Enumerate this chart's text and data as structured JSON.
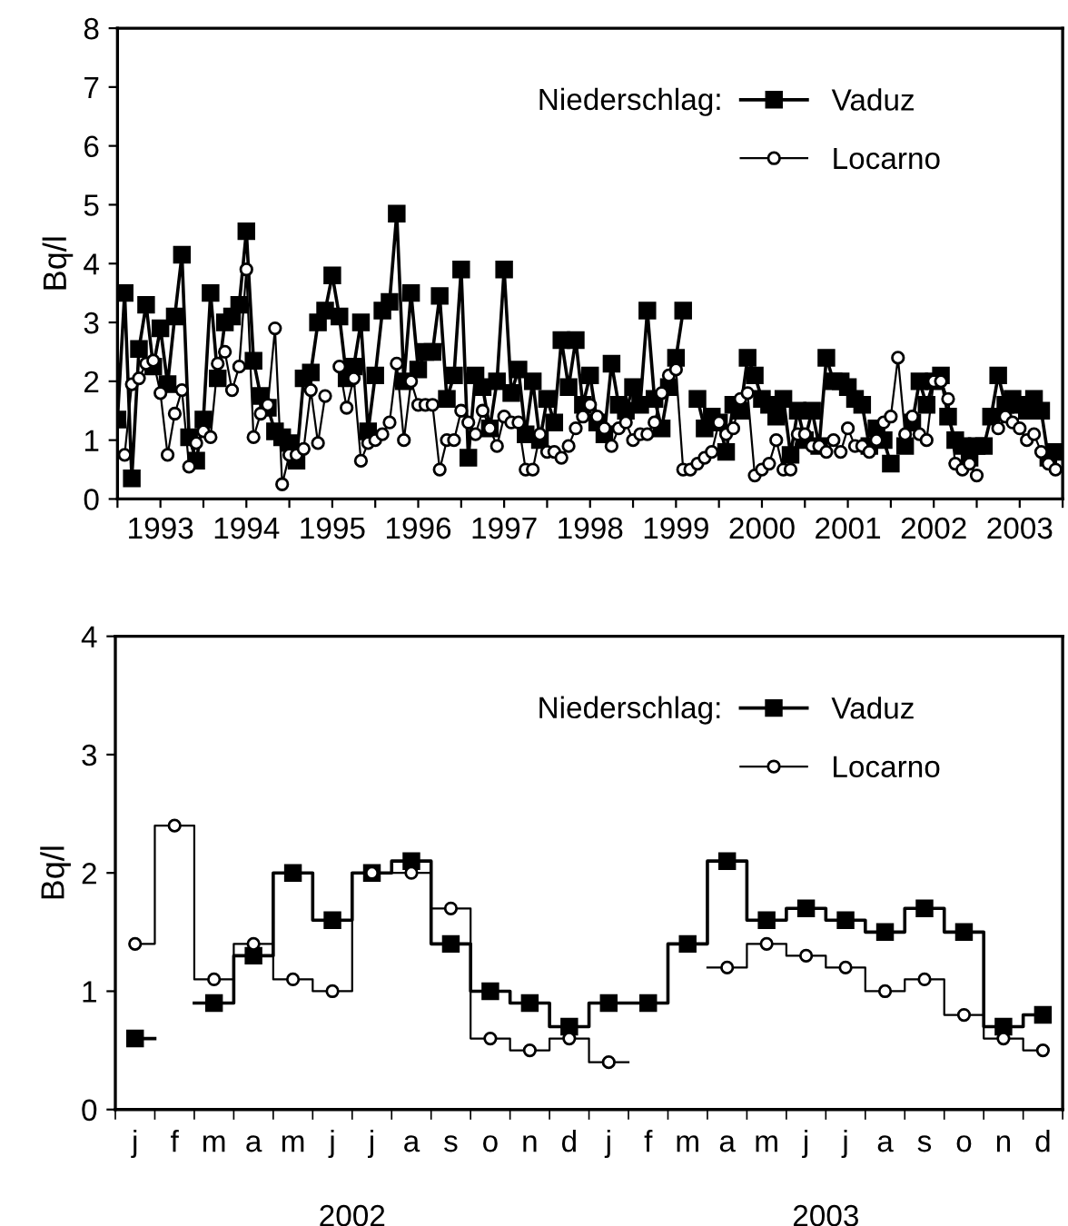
{
  "chart_data": [
    {
      "type": "line",
      "ylabel": "Bq/l",
      "legend_title": "Niederschlag:",
      "legend": "top right",
      "x": [
        "1993-01",
        "1993-02",
        "1993-03",
        "1993-04",
        "1993-05",
        "1993-06",
        "1993-07",
        "1993-08",
        "1993-09",
        "1993-10",
        "1993-11",
        "1993-12",
        "1994-01",
        "1994-02",
        "1994-03",
        "1994-04",
        "1994-05",
        "1994-06",
        "1994-07",
        "1994-08",
        "1994-09",
        "1994-10",
        "1994-11",
        "1994-12",
        "1995-01",
        "1995-02",
        "1995-03",
        "1995-04",
        "1995-05",
        "1995-06",
        "1995-07",
        "1995-08",
        "1995-09",
        "1995-10",
        "1995-11",
        "1995-12",
        "1996-01",
        "1996-02",
        "1996-03",
        "1996-04",
        "1996-05",
        "1996-06",
        "1996-07",
        "1996-08",
        "1996-09",
        "1996-10",
        "1996-11",
        "1996-12",
        "1997-01",
        "1997-02",
        "1997-03",
        "1997-04",
        "1997-05",
        "1997-06",
        "1997-07",
        "1997-08",
        "1997-09",
        "1997-10",
        "1997-11",
        "1997-12",
        "1998-01",
        "1998-02",
        "1998-03",
        "1998-04",
        "1998-05",
        "1998-06",
        "1998-07",
        "1998-08",
        "1998-09",
        "1998-10",
        "1998-11",
        "1998-12",
        "1999-01",
        "1999-02",
        "1999-03",
        "1999-04",
        "1999-05",
        "1999-06",
        "1999-07",
        "1999-08",
        "1999-09",
        "1999-10",
        "1999-11",
        "1999-12",
        "2000-01",
        "2000-02",
        "2000-03",
        "2000-04",
        "2000-05",
        "2000-06",
        "2000-07",
        "2000-08",
        "2000-09",
        "2000-10",
        "2000-11",
        "2000-12",
        "2001-01",
        "2001-02",
        "2001-03",
        "2001-04",
        "2001-05",
        "2001-06",
        "2001-07",
        "2001-08",
        "2001-09",
        "2001-10",
        "2001-11",
        "2001-12",
        "2002-01",
        "2002-02",
        "2002-03",
        "2002-04",
        "2002-05",
        "2002-06",
        "2002-07",
        "2002-08",
        "2002-09",
        "2002-10",
        "2002-11",
        "2002-12",
        "2003-01",
        "2003-02",
        "2003-03",
        "2003-04",
        "2003-05",
        "2003-06",
        "2003-07",
        "2003-08",
        "2003-09",
        "2003-10",
        "2003-11",
        "2003-12"
      ],
      "xlim": [
        "1993-01",
        "2004-01"
      ],
      "xticks": [
        {
          "value": "1993-01",
          "label": null
        },
        {
          "value": "1993-07",
          "label": "1993"
        },
        {
          "value": "1994-01",
          "label": null
        },
        {
          "value": "1994-07",
          "label": "1994"
        },
        {
          "value": "1995-01",
          "label": null
        },
        {
          "value": "1995-07",
          "label": "1995"
        },
        {
          "value": "1996-01",
          "label": null
        },
        {
          "value": "1996-07",
          "label": "1996"
        },
        {
          "value": "1997-01",
          "label": null
        },
        {
          "value": "1997-07",
          "label": "1997"
        },
        {
          "value": "1998-01",
          "label": null
        },
        {
          "value": "1998-07",
          "label": "1998"
        },
        {
          "value": "1999-01",
          "label": null
        },
        {
          "value": "1999-07",
          "label": "1999"
        },
        {
          "value": "2000-01",
          "label": null
        },
        {
          "value": "2000-07",
          "label": "2000"
        },
        {
          "value": "2001-01",
          "label": null
        },
        {
          "value": "2001-07",
          "label": "2001"
        },
        {
          "value": "2002-01",
          "label": null
        },
        {
          "value": "2002-07",
          "label": "2002"
        },
        {
          "value": "2003-01",
          "label": null
        },
        {
          "value": "2003-07",
          "label": "2003"
        },
        {
          "value": "2004-01",
          "label": null
        }
      ],
      "ylim": [
        0,
        8
      ],
      "yticks": [
        0,
        1,
        2,
        3,
        4,
        5,
        6,
        7,
        8
      ],
      "series": [
        {
          "name": "Vaduz",
          "color": "#000000",
          "marker": "square",
          "values": [
            1.35,
            3.5,
            0.35,
            2.55,
            3.3,
            2.25,
            2.9,
            1.95,
            3.1,
            4.15,
            1.05,
            0.65,
            1.35,
            3.5,
            2.05,
            3.0,
            3.1,
            3.3,
            4.55,
            2.35,
            1.75,
            1.55,
            1.15,
            1.05,
            0.95,
            0.65,
            2.05,
            2.15,
            3.0,
            3.2,
            3.8,
            3.1,
            2.05,
            2.25,
            3.0,
            1.15,
            2.1,
            3.2,
            3.35,
            4.85,
            2.0,
            3.5,
            2.2,
            2.5,
            2.5,
            3.45,
            1.7,
            2.1,
            3.9,
            0.7,
            2.1,
            1.9,
            1.2,
            2.0,
            3.9,
            1.8,
            2.2,
            1.1,
            2.0,
            1.0,
            1.7,
            1.3,
            2.7,
            1.9,
            2.7,
            1.6,
            2.1,
            1.3,
            1.1,
            2.3,
            1.6,
            1.5,
            1.9,
            1.6,
            3.2,
            1.7,
            1.2,
            1.9,
            2.4,
            3.2,
            null,
            1.7,
            1.2,
            1.4,
            1.3,
            0.8,
            1.6,
            1.5,
            2.4,
            2.1,
            1.7,
            1.6,
            1.4,
            1.7,
            0.75,
            1.5,
            1.0,
            1.5,
            0.9,
            2.4,
            2.0,
            2.0,
            1.9,
            1.7,
            1.6,
            0.9,
            1.2,
            1.0,
            0.6,
            null,
            0.9,
            1.3,
            2.0,
            1.6,
            2.0,
            2.1,
            1.4,
            1.0,
            0.9,
            0.7,
            0.9,
            0.9,
            1.4,
            2.1,
            1.6,
            1.7,
            1.6,
            1.5,
            1.7,
            1.5,
            0.7,
            0.8
          ]
        },
        {
          "name": "Locarno",
          "color": "#000000",
          "marker": "circle",
          "values": [
            null,
            0.75,
            1.95,
            2.05,
            2.3,
            2.35,
            1.8,
            0.75,
            1.45,
            1.85,
            0.55,
            0.95,
            1.15,
            1.05,
            2.3,
            2.5,
            1.85,
            2.25,
            3.9,
            1.05,
            1.45,
            1.6,
            2.9,
            0.25,
            0.75,
            0.75,
            0.85,
            1.85,
            0.95,
            1.75,
            null,
            2.25,
            1.55,
            2.05,
            0.65,
            0.95,
            1.0,
            1.1,
            1.3,
            2.3,
            1.0,
            2.0,
            1.6,
            1.6,
            1.6,
            0.5,
            1.0,
            1.0,
            1.5,
            1.3,
            1.1,
            1.5,
            1.2,
            0.9,
            1.4,
            1.3,
            1.3,
            0.5,
            0.5,
            1.1,
            0.8,
            0.8,
            0.7,
            0.9,
            1.2,
            1.4,
            1.6,
            1.4,
            1.2,
            0.9,
            1.2,
            1.3,
            1.0,
            1.1,
            1.1,
            1.3,
            1.8,
            2.1,
            2.2,
            0.5,
            0.5,
            0.6,
            0.7,
            0.8,
            1.3,
            1.1,
            1.2,
            1.7,
            1.8,
            0.4,
            0.5,
            0.6,
            1.0,
            0.5,
            0.5,
            1.1,
            1.1,
            0.9,
            0.9,
            0.8,
            1.0,
            0.8,
            1.2,
            0.9,
            0.9,
            0.8,
            1.0,
            1.3,
            1.4,
            2.4,
            1.1,
            1.4,
            1.1,
            1.0,
            2.0,
            2.0,
            1.7,
            0.6,
            0.5,
            0.6,
            0.4,
            null,
            null,
            1.2,
            1.4,
            1.3,
            1.2,
            1.0,
            1.1,
            0.8,
            0.6,
            0.5
          ]
        }
      ]
    },
    {
      "type": "step",
      "ylabel": "Bq/l",
      "legend_title": "Niederschlag:",
      "legend": "top right",
      "categories": [
        "j",
        "f",
        "m",
        "a",
        "m",
        "j",
        "j",
        "a",
        "s",
        "o",
        "n",
        "d",
        "j",
        "f",
        "m",
        "a",
        "m",
        "j",
        "j",
        "a",
        "s",
        "o",
        "n",
        "d"
      ],
      "ylim": [
        0,
        4
      ],
      "yticks": [
        0,
        1,
        2,
        3,
        4
      ],
      "annotations": [
        "2002",
        "2003"
      ],
      "series": [
        {
          "name": "Vaduz",
          "color": "#000000",
          "marker": "square",
          "values": [
            0.6,
            null,
            0.9,
            1.3,
            2.0,
            1.6,
            2.0,
            2.1,
            1.4,
            1.0,
            0.9,
            0.7,
            0.9,
            0.9,
            1.4,
            2.1,
            1.6,
            1.7,
            1.6,
            1.5,
            1.7,
            1.5,
            0.7,
            0.8
          ]
        },
        {
          "name": "Locarno",
          "color": "#000000",
          "marker": "circle",
          "values": [
            1.4,
            2.4,
            1.1,
            1.4,
            1.1,
            1.0,
            2.0,
            2.0,
            1.7,
            0.6,
            0.5,
            0.6,
            0.4,
            null,
            null,
            1.2,
            1.4,
            1.3,
            1.2,
            1.0,
            1.1,
            0.8,
            0.6,
            0.5
          ]
        }
      ]
    }
  ]
}
